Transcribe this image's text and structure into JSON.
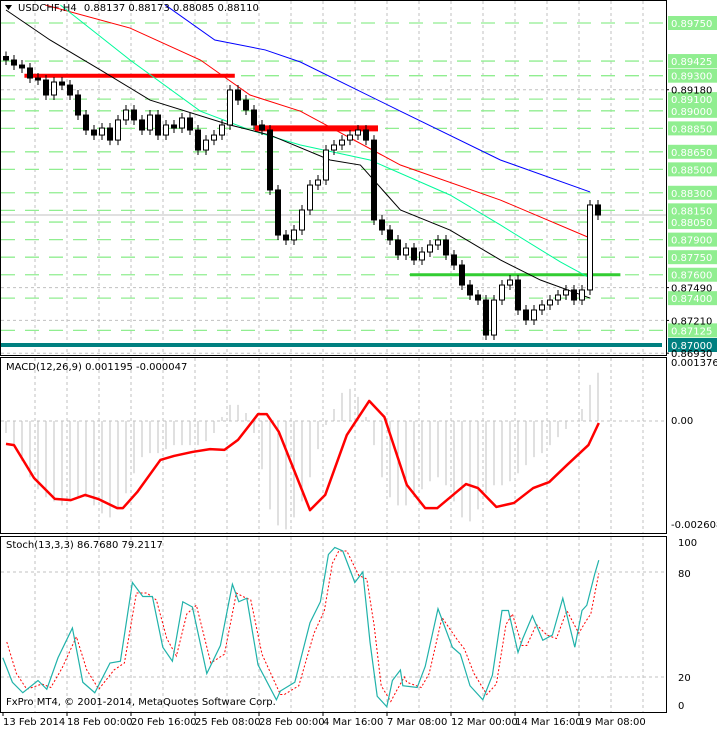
{
  "header": {
    "symbol": "USDCHF,H4",
    "ohlc": "0.88137 0.88173 0.88085 0.88110"
  },
  "macd_header": "MACD(12,26,9) 0.001195 -0.000047",
  "stoch_header": "Stoch(13,3,3) 86.7680 79.2117",
  "copyright": "FxPro MT4, © 2001-2014, MetaQuotes Software Corp.",
  "colors": {
    "bull": "#ffffff",
    "bear": "#000000",
    "level_green": "#90ee90",
    "resistance_red": "#ff0000",
    "support_green": "#32cd32",
    "key_level_teal": "#008080",
    "ma_blue": "#0000ff",
    "ma_red": "#ff0000",
    "ma_green": "#00fa9a",
    "ma_black": "#000000",
    "stoch_main": "#20b2aa",
    "stoch_signal": "#ff0000",
    "macd_hist": "#c0c0c0",
    "macd_signal": "#ff0000"
  },
  "chart_data": [
    {
      "type": "candlestick",
      "title": "USDCHF,H4",
      "ylim": [
        0.8693,
        0.8985
      ],
      "grid": true,
      "x_tick_labels": [
        "13 Feb 2014",
        "18 Feb 00:00",
        "20 Feb 16:00",
        "25 Feb 08:00",
        "28 Feb 00:00",
        "4 Mar 16:00",
        "7 Mar 08:00",
        "12 Mar 00:00",
        "14 Mar 16:00",
        "19 Mar 08:00"
      ],
      "price_axis_labels": [
        "0.89180",
        "0.87490",
        "0.87210",
        "0.86930"
      ],
      "highlighted_levels": [
        "0.89750",
        "0.89425",
        "0.89300",
        "0.89100",
        "0.89000",
        "0.88850",
        "0.88650",
        "0.88500",
        "0.88300",
        "0.88150",
        "0.88050",
        "0.87900",
        "0.87750",
        "0.87600",
        "0.87400",
        "0.87125",
        "0.87000"
      ],
      "current_price": 0.8811,
      "closes": [
        0.89434,
        0.89391,
        0.89366,
        0.8928,
        0.89263,
        0.89135,
        0.89246,
        0.8922,
        0.89135,
        0.88964,
        0.88836,
        0.88793,
        0.88853,
        0.8875,
        0.88922,
        0.89007,
        0.88922,
        0.88836,
        0.88964,
        0.88793,
        0.88879,
        0.88853,
        0.88939,
        0.88836,
        0.88665,
        0.8875,
        0.88793,
        0.88879,
        0.89178,
        0.89092,
        0.89007,
        0.88879,
        0.88836,
        0.88324,
        0.87939,
        0.87897,
        0.87982,
        0.88153,
        0.88366,
        0.88409,
        0.88665,
        0.88708,
        0.8875,
        0.88793,
        0.88836,
        0.8875,
        0.88068,
        0.87982,
        0.87897,
        0.87769,
        0.87828,
        0.87726,
        0.87794,
        0.87854,
        0.87897,
        0.87769,
        0.87683,
        0.87512,
        0.87427,
        0.87384,
        0.87085,
        0.87384,
        0.87512,
        0.87555,
        0.87299,
        0.87214,
        0.87299,
        0.87342,
        0.87384,
        0.87427,
        0.8747,
        0.87384,
        0.8747,
        0.88196,
        0.8811
      ],
      "moving_averages": [
        {
          "color": "#0000ff",
          "points": [
            [
              19.9,
              0.89904
            ],
            [
              26.1,
              0.89605
            ],
            [
              32.4,
              0.8952
            ],
            [
              36.8,
              0.89417
            ],
            [
              49.3,
              0.88997
            ],
            [
              61.8,
              0.8858
            ],
            [
              73,
              0.88307
            ]
          ]
        },
        {
          "color": "#ff0000",
          "points": [
            [
              4.9,
              0.89904
            ],
            [
              15.5,
              0.89707
            ],
            [
              24.3,
              0.89434
            ],
            [
              30.5,
              0.89135
            ],
            [
              36.8,
              0.88997
            ],
            [
              49.3,
              0.88537
            ],
            [
              61.8,
              0.88238
            ],
            [
              73,
              0.87914
            ]
          ]
        },
        {
          "color": "#00fa9a",
          "points": [
            [
              6.8,
              0.89904
            ],
            [
              15.5,
              0.89434
            ],
            [
              24.3,
              0.88997
            ],
            [
              30.5,
              0.88836
            ],
            [
              36.8,
              0.88708
            ],
            [
              45.5,
              0.8858
            ],
            [
              55.5,
              0.88281
            ],
            [
              61.8,
              0.88025
            ],
            [
              69.3,
              0.87709
            ],
            [
              73,
              0.87572
            ]
          ]
        },
        {
          "color": "#000000",
          "points": [
            [
              0,
              0.89861
            ],
            [
              5.5,
              0.89605
            ],
            [
              11.8,
              0.89349
            ],
            [
              18,
              0.89092
            ],
            [
              28,
              0.88879
            ],
            [
              33,
              0.88793
            ],
            [
              40.5,
              0.8858
            ],
            [
              44.3,
              0.88537
            ],
            [
              49.3,
              0.88153
            ],
            [
              55.5,
              0.87982
            ],
            [
              61.8,
              0.87726
            ],
            [
              66.8,
              0.87555
            ],
            [
              73,
              0.87401
            ]
          ]
        }
      ],
      "drawn_lines": [
        {
          "price": 0.893,
          "from_bar": 2.3,
          "to_bar": 28.6,
          "color": "#ff0000"
        },
        {
          "price": 0.8885,
          "from_bar": 31.1,
          "to_bar": 46.5,
          "color": "#ff0000"
        },
        {
          "price": 0.876,
          "from_bar": 50.5,
          "to_bar": 76.8,
          "color": "#32cd32"
        },
        {
          "price": 0.87,
          "from_bar": -1,
          "to_bar": 82,
          "color": "#008080"
        }
      ]
    },
    {
      "type": "bar",
      "title": "MACD(12,26,9)",
      "axis_labels": [
        "0.001376",
        "0.00",
        "-0.002608"
      ],
      "ylim": [
        -0.002608,
        0.001376
      ],
      "histogram": [
        -0.0003,
        -0.0006,
        -0.001,
        -0.0014,
        -0.0017,
        -0.0019,
        -0.002,
        -0.0021,
        -0.002,
        -0.0019,
        -0.0019,
        -0.0021,
        -0.0023,
        -0.0024,
        -0.0022,
        -0.0018,
        -0.0013,
        -0.0009,
        -0.0008,
        -0.0008,
        -0.0007,
        -0.0006,
        -0.0006,
        -0.0006,
        -0.0006,
        -0.0005,
        -0.0003,
        0.0001,
        0.0004,
        0.0004,
        0.0002,
        -0.0003,
        -0.0012,
        -0.0022,
        -0.0026,
        -0.0027,
        -0.0024,
        -0.002,
        -0.0014,
        -0.0007,
        -0.0001,
        0.0003,
        0.0007,
        0.0008,
        0.0006,
        0.0001,
        -0.0006,
        -0.0014,
        -0.0019,
        -0.0021,
        -0.0021,
        -0.0019,
        -0.0017,
        -0.0015,
        -0.0014,
        -0.0016,
        -0.002,
        -0.0024,
        -0.0025,
        -0.0022,
        -0.0018,
        -0.0016,
        -0.0016,
        -0.0015,
        -0.0013,
        -0.0011,
        -0.0009,
        -0.0008,
        -0.0006,
        -0.0004,
        -0.0002,
        0.0,
        0.0003,
        0.0009,
        0.0012
      ],
      "signal": [
        [
          0,
          -0.00057
        ],
        [
          1,
          -0.0006
        ],
        [
          3.5,
          -0.00142
        ],
        [
          6.1,
          -0.00194
        ],
        [
          8.1,
          -0.00197
        ],
        [
          9.9,
          -0.00184
        ],
        [
          11.5,
          -0.00194
        ],
        [
          13.9,
          -0.00217
        ],
        [
          14.6,
          -0.00217
        ],
        [
          16.4,
          -0.00177
        ],
        [
          19.3,
          -0.00097
        ],
        [
          21,
          -0.00087
        ],
        [
          23.3,
          -0.00077
        ],
        [
          25.5,
          -0.0007
        ],
        [
          27.3,
          -0.00072
        ],
        [
          29,
          -0.00047
        ],
        [
          31.5,
          0.00017
        ],
        [
          32.6,
          0.00017
        ],
        [
          34.1,
          -0.00027
        ],
        [
          35.9,
          -0.00117
        ],
        [
          38,
          -0.00222
        ],
        [
          39.9,
          -0.00184
        ],
        [
          42.6,
          -0.00035
        ],
        [
          45.4,
          0.0005
        ],
        [
          47.3,
          0.0001
        ],
        [
          50.1,
          -0.00159
        ],
        [
          52.4,
          -0.00217
        ],
        [
          53.9,
          -0.00217
        ],
        [
          57.5,
          -0.00157
        ],
        [
          59,
          -0.00167
        ],
        [
          61.3,
          -0.00214
        ],
        [
          63.5,
          -0.00204
        ],
        [
          65.9,
          -0.00167
        ],
        [
          67.9,
          -0.00152
        ],
        [
          70.1,
          -0.0011
        ],
        [
          72.8,
          -0.0006
        ],
        [
          74.1,
          -5e-05
        ]
      ]
    },
    {
      "type": "line",
      "title": "Stoch(13,3,3)",
      "axis_labels": [
        "100",
        "80",
        "20",
        "0"
      ],
      "ylim": [
        0,
        100
      ],
      "levels": [
        80,
        20
      ],
      "series": [
        {
          "key": "main",
          "points": [
            [
              -0.4,
              31
            ],
            [
              0.8,
              17
            ],
            [
              2.1,
              11
            ],
            [
              4,
              18
            ],
            [
              5.1,
              13
            ],
            [
              6.5,
              31
            ],
            [
              8.3,
              48
            ],
            [
              9.6,
              17
            ],
            [
              11.1,
              11
            ],
            [
              13,
              28
            ],
            [
              14.3,
              29
            ],
            [
              15.8,
              74
            ],
            [
              17.1,
              66
            ],
            [
              18.3,
              66
            ],
            [
              19.6,
              37
            ],
            [
              20.8,
              29
            ],
            [
              22.1,
              63
            ],
            [
              23.3,
              60
            ],
            [
              25.1,
              22
            ],
            [
              26.8,
              38
            ],
            [
              28.3,
              73
            ],
            [
              29.1,
              63
            ],
            [
              30.1,
              65
            ],
            [
              31.5,
              27
            ],
            [
              33.8,
              7
            ],
            [
              34.3,
              12
            ],
            [
              36.1,
              17
            ],
            [
              38,
              51
            ],
            [
              39.3,
              63
            ],
            [
              40.3,
              90
            ],
            [
              41.1,
              94
            ],
            [
              42.1,
              92
            ],
            [
              43.6,
              74
            ],
            [
              44.6,
              80
            ],
            [
              45.5,
              40
            ],
            [
              46.4,
              9
            ],
            [
              47.6,
              3
            ],
            [
              48.3,
              18
            ],
            [
              49.3,
              24
            ],
            [
              49.6,
              15
            ],
            [
              51.4,
              14
            ],
            [
              52.4,
              26
            ],
            [
              54,
              59
            ],
            [
              55.8,
              37
            ],
            [
              56.8,
              33
            ],
            [
              58,
              15
            ],
            [
              59.6,
              7
            ],
            [
              60.8,
              21
            ],
            [
              62,
              58
            ],
            [
              62.8,
              58
            ],
            [
              64,
              34
            ],
            [
              64.6,
              42
            ],
            [
              65.8,
              55
            ],
            [
              67.1,
              41
            ],
            [
              68.3,
              44
            ],
            [
              69.6,
              65
            ],
            [
              71.1,
              37
            ],
            [
              72,
              58
            ],
            [
              72.6,
              61
            ],
            [
              73.6,
              79
            ],
            [
              74.1,
              86.768
            ]
          ]
        },
        {
          "key": "signal",
          "points": [
            [
              0.1,
              40
            ],
            [
              1.3,
              22
            ],
            [
              2.6,
              13
            ],
            [
              4.5,
              16
            ],
            [
              5.6,
              14
            ],
            [
              7,
              25
            ],
            [
              8.8,
              43
            ],
            [
              10.1,
              24
            ],
            [
              11.6,
              13
            ],
            [
              13.5,
              24
            ],
            [
              14.8,
              28
            ],
            [
              16.3,
              68
            ],
            [
              17.6,
              68
            ],
            [
              18.8,
              64
            ],
            [
              20.1,
              42
            ],
            [
              21.3,
              32
            ],
            [
              22.6,
              56
            ],
            [
              23.8,
              61
            ],
            [
              25.6,
              28
            ],
            [
              27.3,
              33
            ],
            [
              28.8,
              68
            ],
            [
              29.6,
              66
            ],
            [
              30.6,
              64
            ],
            [
              32,
              33
            ],
            [
              34.3,
              10
            ],
            [
              34.8,
              10
            ],
            [
              36.6,
              15
            ],
            [
              38.5,
              45
            ],
            [
              39.8,
              58
            ],
            [
              40.8,
              85
            ],
            [
              41.6,
              92
            ],
            [
              42.6,
              92
            ],
            [
              44.1,
              78
            ],
            [
              45.1,
              76
            ],
            [
              46,
              50
            ],
            [
              46.9,
              15
            ],
            [
              48.1,
              6
            ],
            [
              48.8,
              12
            ],
            [
              49.8,
              20
            ],
            [
              50.1,
              17
            ],
            [
              51.9,
              14
            ],
            [
              52.9,
              22
            ],
            [
              54.5,
              54
            ],
            [
              56.3,
              42
            ],
            [
              57.3,
              36
            ],
            [
              58.5,
              22
            ],
            [
              60.1,
              10
            ],
            [
              61.3,
              16
            ],
            [
              62.5,
              50
            ],
            [
              63.3,
              56
            ],
            [
              64.5,
              38
            ],
            [
              65.1,
              38
            ],
            [
              66.3,
              50
            ],
            [
              67.6,
              44
            ],
            [
              68.8,
              42
            ],
            [
              70.1,
              58
            ],
            [
              71.6,
              45
            ],
            [
              72.5,
              52
            ],
            [
              73.1,
              56
            ],
            [
              74.1,
              79.2117
            ]
          ]
        }
      ]
    }
  ]
}
